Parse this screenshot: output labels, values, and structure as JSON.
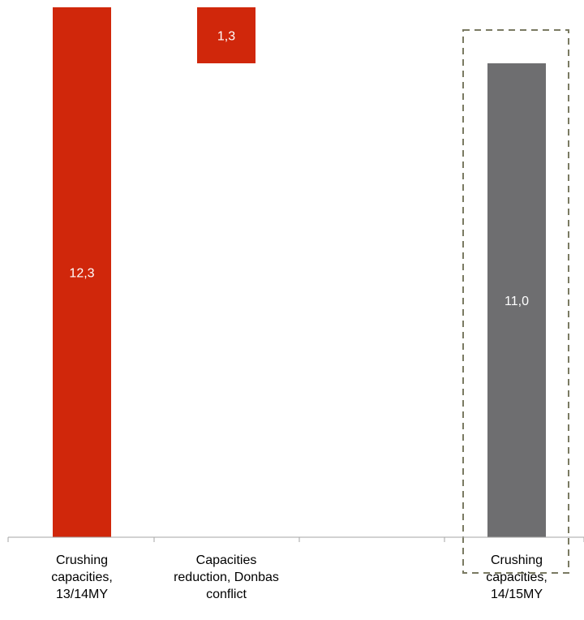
{
  "chart_data": {
    "type": "bar",
    "subtype": "waterfall",
    "categories": [
      "Crushing\ncapacities,\n13/14MY",
      "Capacities\nreduction, Donbas\nconflict",
      "",
      "Crushing\ncapacities,\n14/15MY"
    ],
    "values": [
      12.3,
      -1.3,
      null,
      11.0
    ],
    "data_labels": [
      "12,3",
      "1,3",
      "",
      "11,0"
    ],
    "title": "",
    "xlabel": "",
    "ylabel": "",
    "ylim": [
      0,
      12.3
    ],
    "grid": false,
    "legend": "none",
    "highlighted_category": "Crushing\ncapacities,\n14/15MY",
    "colors": {
      "increase": "#d0270b",
      "decrease": "#d0270b",
      "total": "#6e6e70",
      "highlight_border": "#7a7a62",
      "axis": "#a6a6a6",
      "label_text": "#ffffff"
    }
  }
}
